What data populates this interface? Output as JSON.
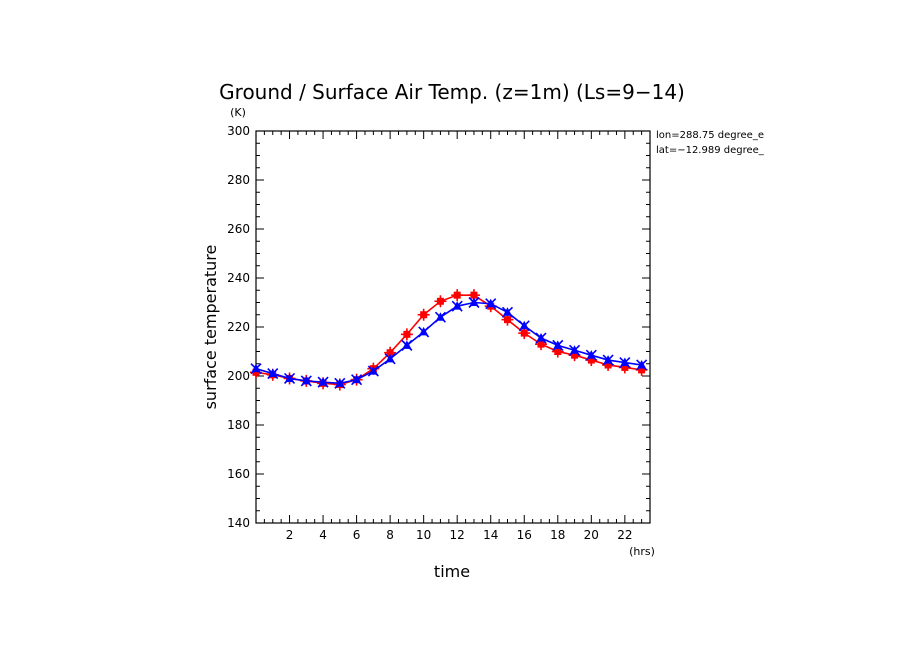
{
  "chart_data": {
    "type": "line",
    "title": "Ground / Surface Air Temp. (z=1m) (Ls=9−14)",
    "xlabel": "time",
    "ylabel": "surface temperature",
    "x_unit": "(hrs)",
    "y_unit": "(K)",
    "xlim": [
      0,
      23.5
    ],
    "ylim": [
      140,
      300
    ],
    "x_ticks": [
      2,
      4,
      6,
      8,
      10,
      12,
      14,
      16,
      18,
      20,
      22
    ],
    "y_ticks": [
      140,
      160,
      180,
      200,
      220,
      240,
      260,
      280,
      300
    ],
    "annotations": [
      "lon=288.75 degree_e",
      "lat=−12.989 degree_"
    ],
    "x": [
      0,
      1,
      2,
      3,
      4,
      5,
      6,
      7,
      8,
      9,
      10,
      11,
      12,
      13,
      14,
      15,
      16,
      17,
      18,
      19,
      20,
      21,
      22,
      23
    ],
    "series": [
      {
        "color": "#ff0000",
        "marker": "square-plus",
        "values": [
          201.5,
          200.5,
          199.0,
          198.0,
          197.0,
          196.5,
          198.5,
          203.0,
          209.5,
          217.0,
          225.0,
          230.5,
          233.0,
          233.0,
          228.5,
          223.0,
          217.5,
          213.0,
          210.0,
          208.5,
          206.5,
          204.5,
          203.5,
          202.5
        ]
      },
      {
        "color": "#0000ff",
        "marker": "triangle-x",
        "values": [
          203.0,
          201.0,
          199.0,
          198.0,
          197.5,
          197.0,
          198.5,
          202.0,
          207.0,
          212.5,
          218.0,
          224.0,
          228.5,
          230.0,
          229.5,
          226.0,
          220.5,
          215.5,
          212.5,
          210.5,
          208.5,
          206.5,
          205.5,
          204.5
        ]
      }
    ]
  }
}
